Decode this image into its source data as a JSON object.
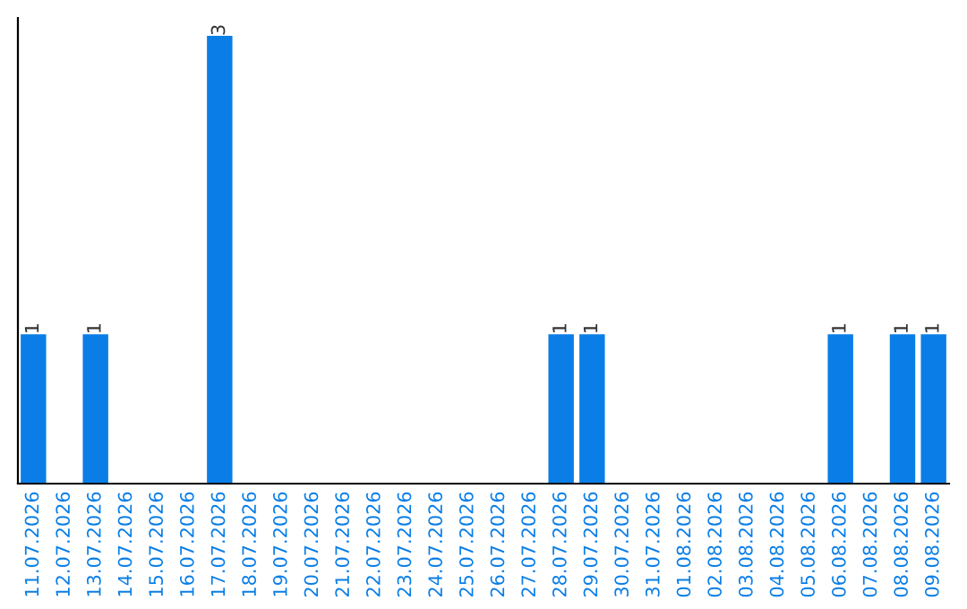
{
  "chart_data": {
    "type": "bar",
    "categories": [
      "11.07.2026",
      "12.07.2026",
      "13.07.2026",
      "14.07.2026",
      "15.07.2026",
      "16.07.2026",
      "17.07.2026",
      "18.07.2026",
      "19.07.2026",
      "20.07.2026",
      "21.07.2026",
      "22.07.2026",
      "23.07.2026",
      "24.07.2026",
      "25.07.2026",
      "26.07.2026",
      "27.07.2026",
      "28.07.2026",
      "29.07.2026",
      "30.07.2026",
      "31.07.2026",
      "01.08.2026",
      "02.08.2026",
      "03.08.2026",
      "04.08.2026",
      "05.08.2026",
      "06.08.2026",
      "07.08.2026",
      "08.08.2026",
      "09.08.2026"
    ],
    "values": [
      1,
      0,
      1,
      0,
      0,
      0,
      3,
      0,
      0,
      0,
      0,
      0,
      0,
      0,
      0,
      0,
      0,
      1,
      1,
      0,
      0,
      0,
      0,
      0,
      0,
      0,
      1,
      0,
      1,
      1
    ],
    "value_labels": [
      "1",
      null,
      "1",
      null,
      null,
      null,
      "3",
      null,
      null,
      null,
      null,
      null,
      null,
      null,
      null,
      null,
      null,
      "1",
      "1",
      null,
      null,
      null,
      null,
      null,
      null,
      null,
      "1",
      null,
      "1",
      "1"
    ],
    "color": "#0a7ee6",
    "ylim": [
      0,
      3.12
    ],
    "grid": false,
    "legend": false
  }
}
